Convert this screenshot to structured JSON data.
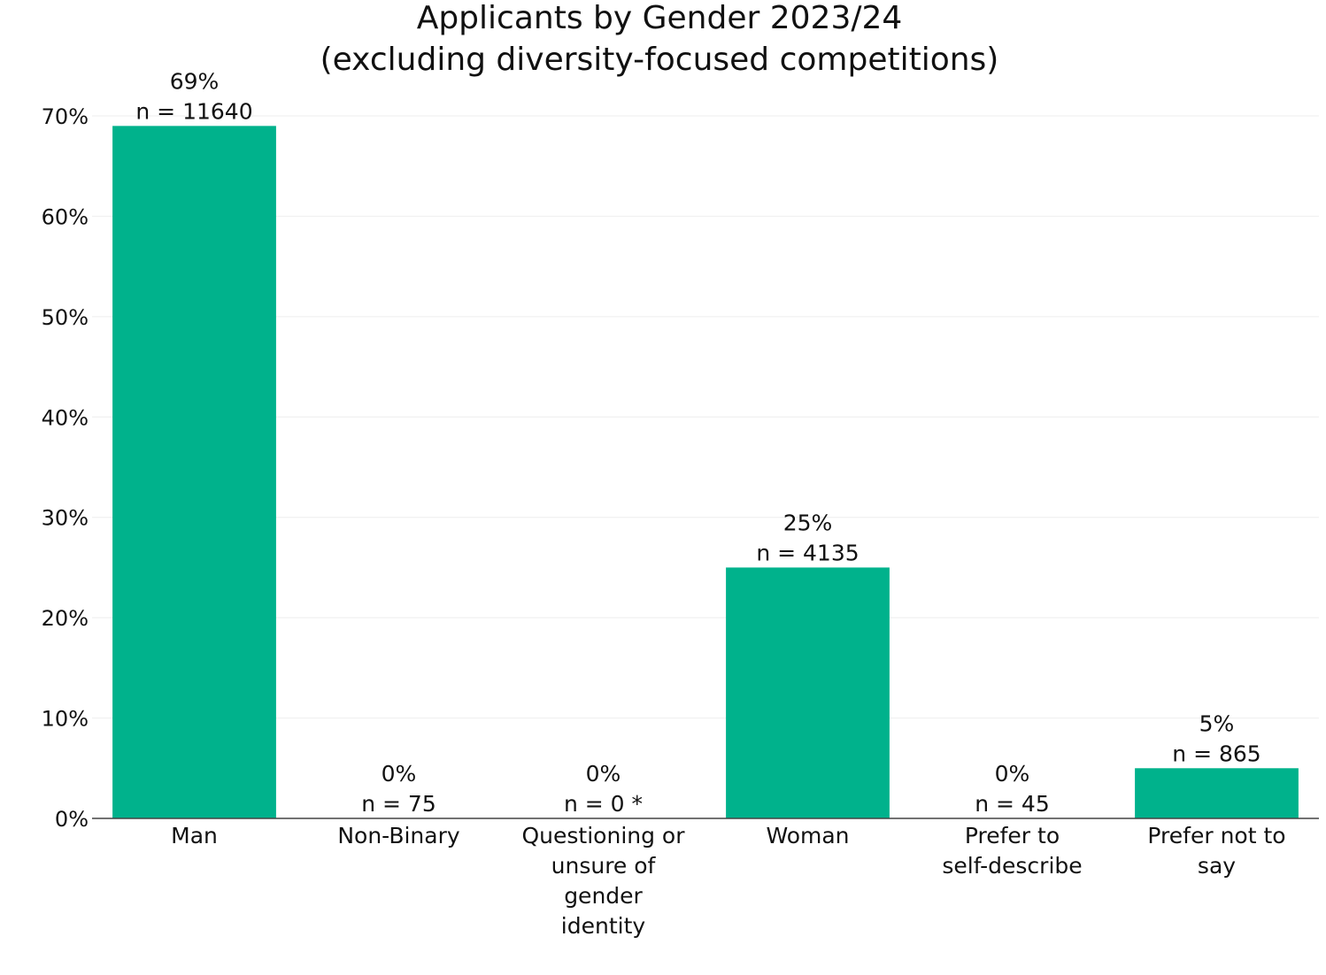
{
  "chart_data": {
    "type": "bar",
    "title": [
      "Applicants by Gender 2023/24",
      "(excluding diversity-focused competitions)"
    ],
    "xlabel": "",
    "ylabel": "",
    "categories": [
      [
        "Man"
      ],
      [
        "Non-Binary"
      ],
      [
        "Questioning or",
        "unsure of",
        "gender",
        "identity"
      ],
      [
        "Woman"
      ],
      [
        "Prefer to",
        "self-describe"
      ],
      [
        "Prefer not to",
        "say"
      ]
    ],
    "values": [
      69,
      0,
      0,
      25,
      0,
      5
    ],
    "data_labels": [
      [
        "69%",
        "n = 11640"
      ],
      [
        "0%",
        "n = 75"
      ],
      [
        "0%",
        "n = 0 *"
      ],
      [
        "25%",
        "n = 4135"
      ],
      [
        "0%",
        "n = 45"
      ],
      [
        "5%",
        "n = 865"
      ]
    ],
    "ylim": [
      0,
      70
    ],
    "yticks": [
      0,
      10,
      20,
      30,
      40,
      50,
      60,
      70
    ],
    "ytick_labels": [
      "0%",
      "10%",
      "20%",
      "30%",
      "40%",
      "50%",
      "60%",
      "70%"
    ],
    "grid": true,
    "colors": {
      "bar": "#00b28c",
      "grid": "#eeeeee",
      "axis": "#444444"
    }
  }
}
